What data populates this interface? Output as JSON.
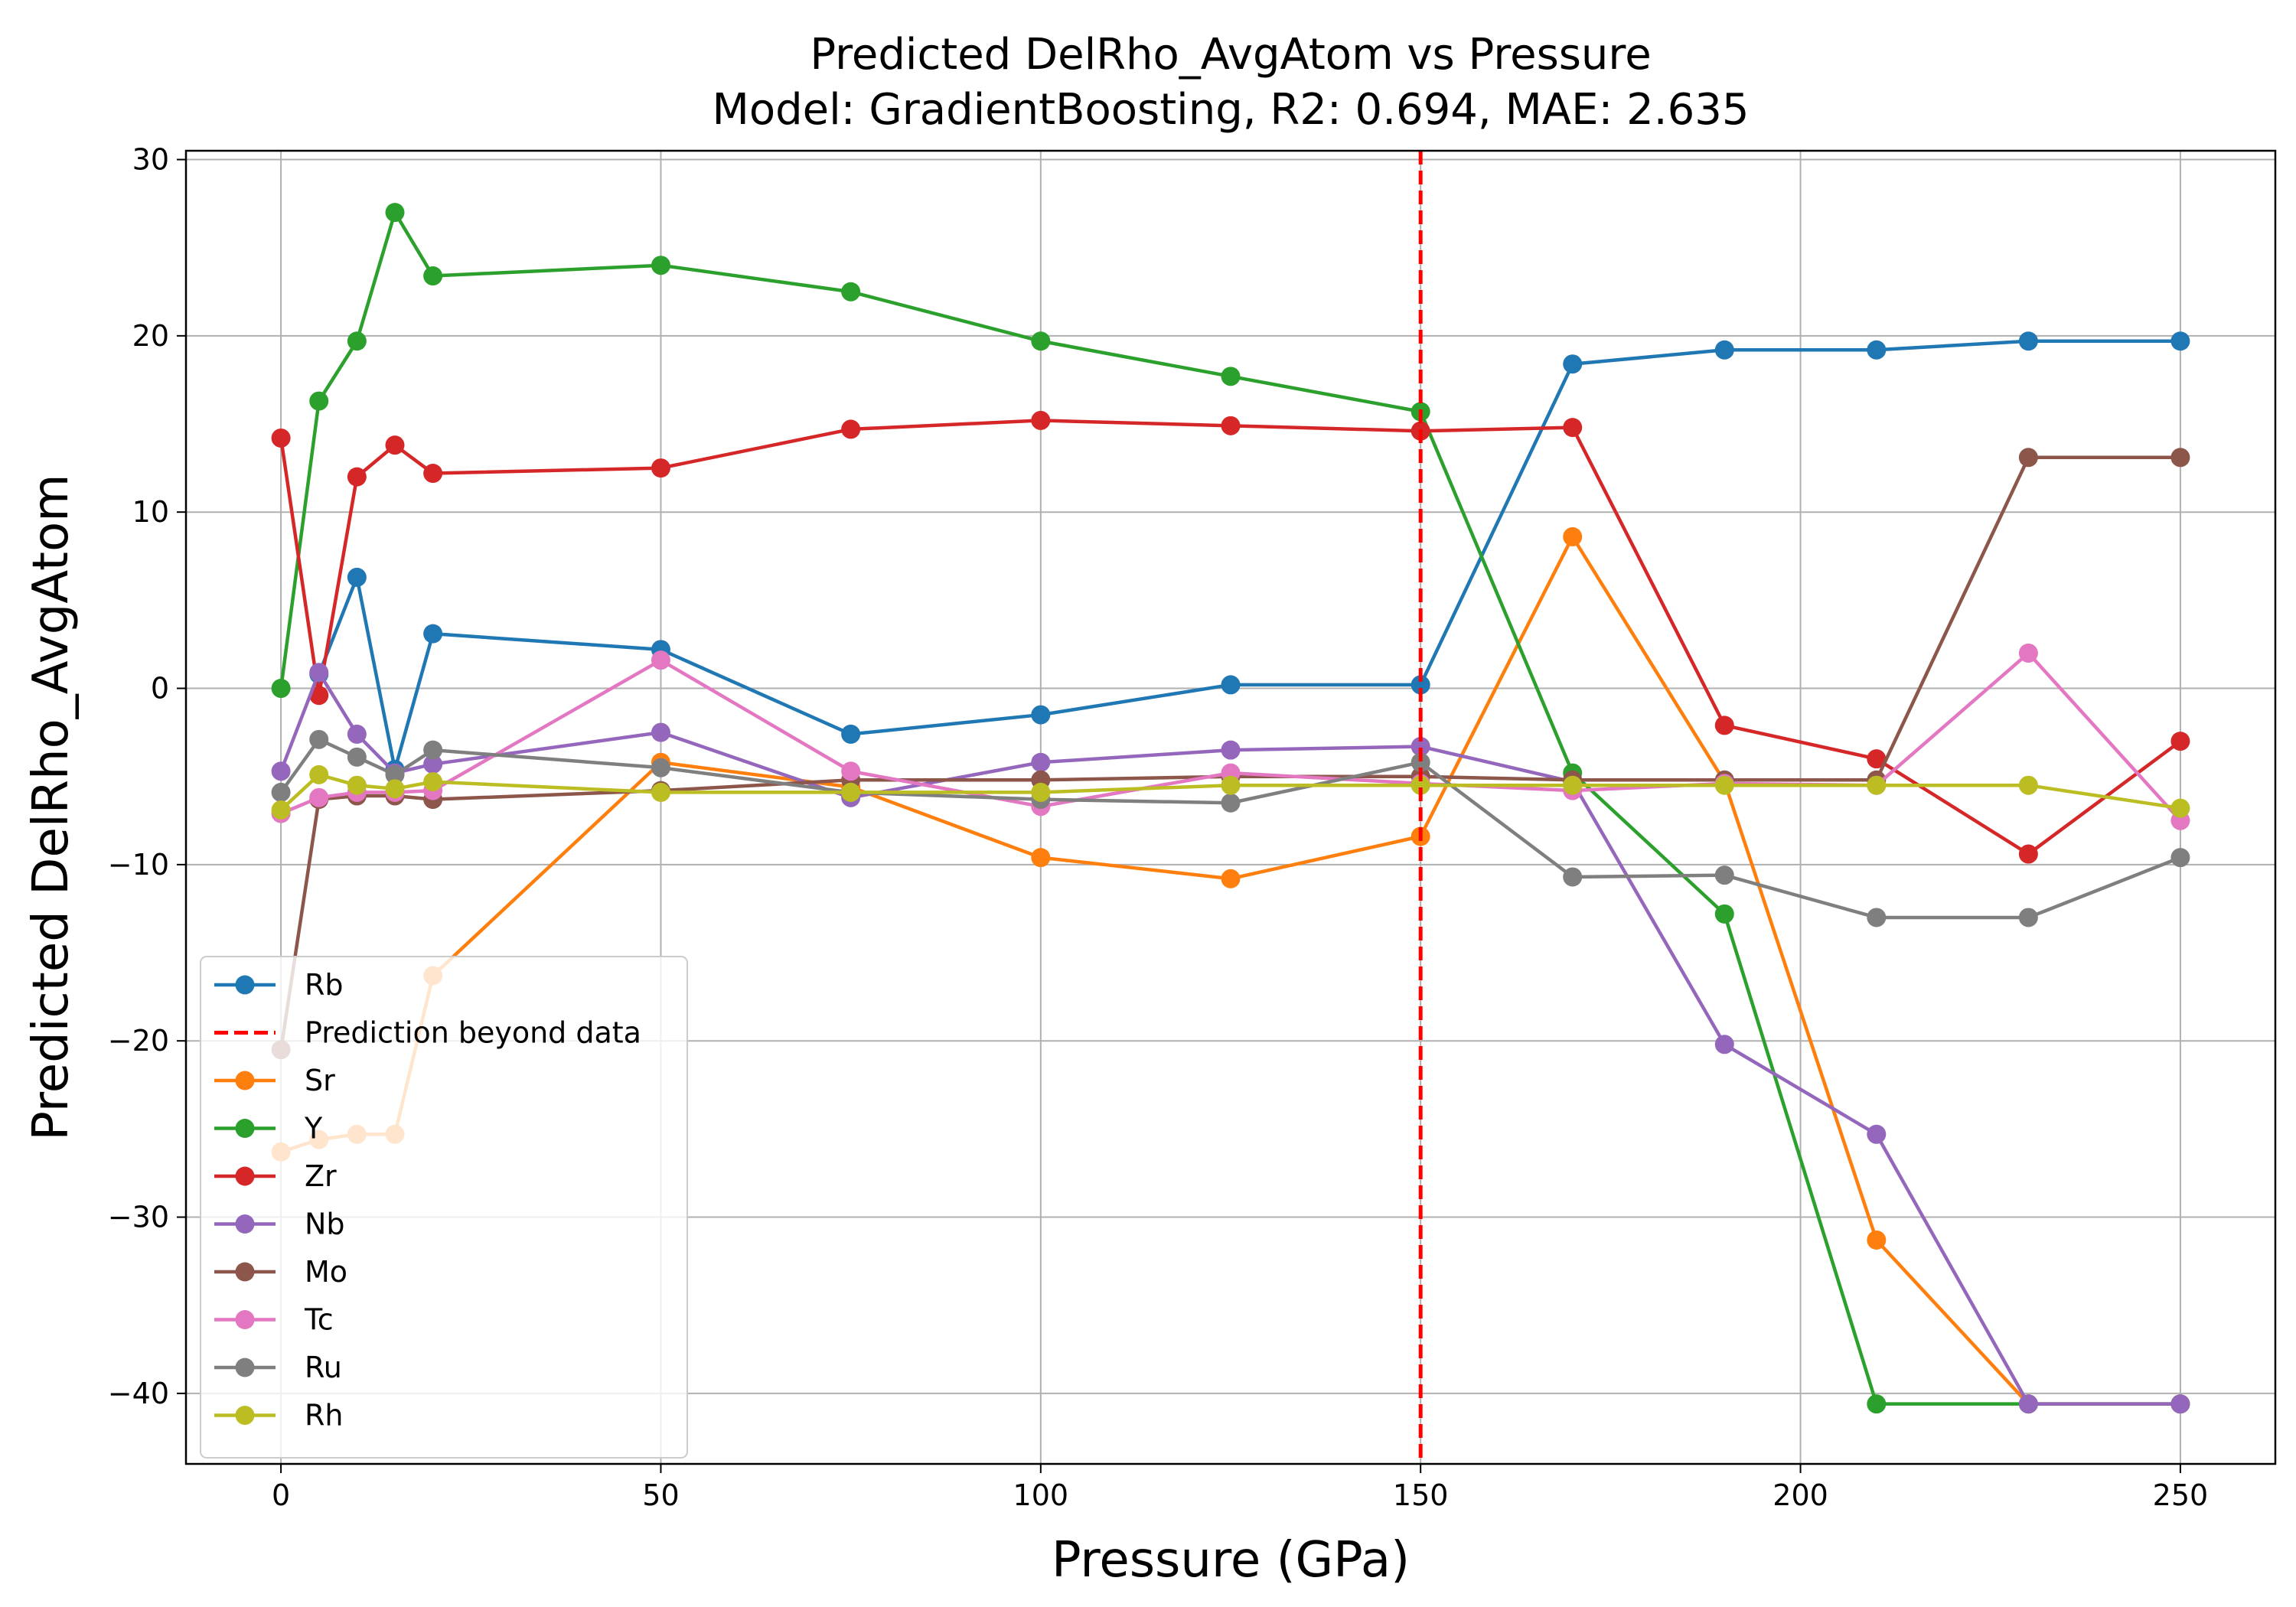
{
  "chart_data": {
    "type": "line",
    "title": "Predicted DelRho_AvgAtom vs Pressure",
    "subtitle": "Model: GradientBoosting, R2: 0.694, MAE: 2.635",
    "xlabel": "Pressure (GPa)",
    "ylabel": "Predicted DelRho_AvgAtom",
    "xlim": [
      -12.5,
      262.5
    ],
    "ylim": [
      -44,
      30.5
    ],
    "xticks": [
      0,
      50,
      100,
      150,
      200,
      250
    ],
    "yticks": [
      -40,
      -30,
      -20,
      -10,
      0,
      10,
      20,
      30
    ],
    "xtick_labels": [
      "0",
      "50",
      "100",
      "150",
      "200",
      "250"
    ],
    "ytick_labels": [
      "−40",
      "−30",
      "−20",
      "−10",
      "0",
      "10",
      "20",
      "30"
    ],
    "grid": true,
    "legend_position": "lower-left",
    "x": [
      0,
      5,
      10,
      15,
      20,
      50,
      75,
      100,
      125,
      150,
      170,
      190,
      210,
      230,
      250
    ],
    "vline": {
      "label": "Prediction beyond data",
      "x": 150,
      "color": "#ff0000",
      "style": "dashed"
    },
    "series": [
      {
        "name": "Rb",
        "color": "#1f77b4",
        "values": [
          null,
          0.8,
          6.3,
          -4.6,
          3.1,
          2.2,
          -2.6,
          -1.5,
          0.2,
          0.2,
          18.4,
          19.2,
          19.2,
          19.7,
          19.7
        ]
      },
      {
        "name": "Sr",
        "color": "#ff7f0e",
        "values": [
          -26.3,
          -25.6,
          -25.3,
          -25.3,
          -16.3,
          -4.2,
          -5.6,
          -9.6,
          -10.8,
          -8.4,
          8.6,
          -5.3,
          -31.3,
          -40.6,
          -40.6
        ]
      },
      {
        "name": "Y",
        "color": "#2ca02c",
        "values": [
          0,
          16.3,
          19.7,
          27.0,
          23.4,
          24.0,
          22.5,
          19.7,
          17.7,
          15.7,
          -4.8,
          -12.8,
          -40.6,
          -40.6,
          -40.6
        ]
      },
      {
        "name": "Zr",
        "color": "#d62728",
        "values": [
          14.2,
          -0.4,
          12.0,
          13.8,
          12.2,
          12.5,
          14.7,
          15.2,
          14.9,
          14.6,
          14.8,
          -2.1,
          -4.0,
          -9.4,
          -3.0
        ]
      },
      {
        "name": "Nb",
        "color": "#9467bd",
        "values": [
          -4.7,
          0.9,
          -2.6,
          -4.8,
          -4.3,
          -2.5,
          -6.2,
          -4.2,
          -3.5,
          -3.3,
          -5.3,
          -20.2,
          -25.3,
          -40.6,
          -40.6
        ]
      },
      {
        "name": "Mo",
        "color": "#8c564b",
        "values": [
          -20.5,
          -6.3,
          -6.1,
          -6.1,
          -6.3,
          -5.8,
          -5.2,
          -5.2,
          -5.0,
          -5.0,
          -5.2,
          -5.2,
          -5.2,
          13.1,
          13.1
        ]
      },
      {
        "name": "Tc",
        "color": "#e377c2",
        "values": [
          -7.1,
          -6.2,
          -5.9,
          -5.9,
          -5.8,
          1.6,
          -4.7,
          -6.7,
          -4.8,
          -5.4,
          -5.8,
          -5.4,
          -5.5,
          2.0,
          -7.5
        ]
      },
      {
        "name": "Ru",
        "color": "#7f7f7f",
        "values": [
          -5.9,
          -2.9,
          -3.9,
          -4.9,
          -3.5,
          -4.5,
          -5.9,
          -6.3,
          -6.5,
          -4.2,
          -10.7,
          -10.6,
          -13.0,
          -13.0,
          -9.6
        ]
      },
      {
        "name": "Rh",
        "color": "#bcbd22",
        "values": [
          -6.9,
          -4.9,
          -5.5,
          -5.7,
          -5.3,
          -5.9,
          -5.9,
          -5.9,
          -5.5,
          -5.5,
          -5.5,
          -5.5,
          -5.5,
          -5.5,
          -6.8
        ]
      }
    ],
    "legend_order": [
      "Rb",
      "Prediction beyond data",
      "Sr",
      "Y",
      "Zr",
      "Nb",
      "Mo",
      "Tc",
      "Ru",
      "Rh"
    ]
  }
}
